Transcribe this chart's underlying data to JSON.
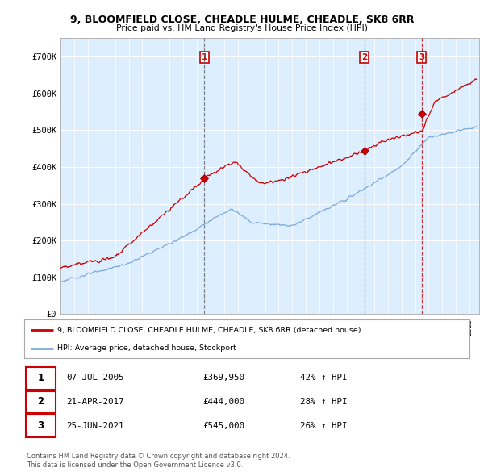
{
  "title": "9, BLOOMFIELD CLOSE, CHEADLE HULME, CHEADLE, SK8 6RR",
  "subtitle": "Price paid vs. HM Land Registry's House Price Index (HPI)",
  "ylim": [
    0,
    750000
  ],
  "yticks": [
    0,
    100000,
    200000,
    300000,
    400000,
    500000,
    600000,
    700000
  ],
  "ytick_labels": [
    "£0",
    "£100K",
    "£200K",
    "£300K",
    "£400K",
    "£500K",
    "£600K",
    "£700K"
  ],
  "background_color": "#ffffff",
  "plot_bg_color": "#ddeeff",
  "grid_color": "#ffffff",
  "red_line_color": "#cc0000",
  "blue_line_color": "#7aaadd",
  "sale_years": [
    2005.53,
    2017.3,
    2021.48
  ],
  "sale_prices": [
    369950,
    444000,
    545000
  ],
  "sale_labels": [
    "1",
    "2",
    "3"
  ],
  "vline1_color": "#666666",
  "vline2_color": "#666666",
  "vline3_color": "#cc0000",
  "legend_red": "9, BLOOMFIELD CLOSE, CHEADLE HULME, CHEADLE, SK8 6RR (detached house)",
  "legend_blue": "HPI: Average price, detached house, Stockport",
  "table_rows": [
    [
      "1",
      "07-JUL-2005",
      "£369,950",
      "42% ↑ HPI"
    ],
    [
      "2",
      "21-APR-2017",
      "£444,000",
      "28% ↑ HPI"
    ],
    [
      "3",
      "25-JUN-2021",
      "£545,000",
      "26% ↑ HPI"
    ]
  ],
  "footer1": "Contains HM Land Registry data © Crown copyright and database right 2024.",
  "footer2": "This data is licensed under the Open Government Licence v3.0."
}
